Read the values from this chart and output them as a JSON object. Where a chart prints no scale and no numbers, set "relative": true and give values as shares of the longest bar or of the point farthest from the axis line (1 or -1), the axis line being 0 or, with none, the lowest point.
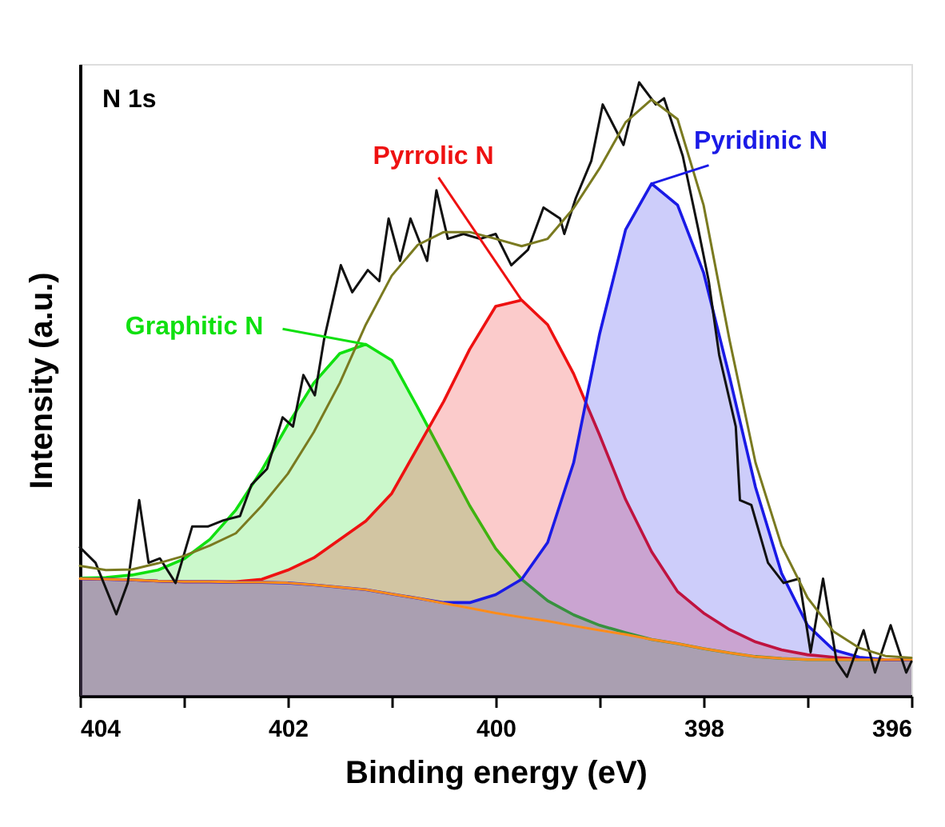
{
  "chart_data": {
    "type": "line",
    "relative": true,
    "xlabel": "Binding energy (eV)",
    "ylabel": "Intensity (a.u.)",
    "annotations": [
      "N 1s"
    ],
    "xlim": [
      404,
      396
    ],
    "xticks": [
      404,
      {
        "value": 403,
        "label": null
      },
      402,
      {
        "value": 401,
        "label": null
      },
      400,
      {
        "value": 399,
        "label": null
      },
      398,
      {
        "value": 397,
        "label": null
      },
      396
    ],
    "tick_labels": "x",
    "grid": false,
    "line_style": "solid",
    "marker": "none",
    "x": [
      404,
      403.75,
      403.5,
      403.25,
      403,
      402.75,
      402.5,
      402.25,
      402,
      401.75,
      401.5,
      401.25,
      401,
      400.75,
      400.5,
      400.25,
      400,
      399.75,
      399.5,
      399.25,
      399,
      398.75,
      398.5,
      398.25,
      398,
      397.75,
      397.5,
      397.25,
      397,
      396.75,
      396.5,
      396.25,
      396
    ],
    "series": [
      {
        "name": "Graphitic N",
        "type": "area",
        "color": "#10e010",
        "values": [
          0.192,
          0.193,
          0.197,
          0.205,
          0.223,
          0.255,
          0.303,
          0.368,
          0.442,
          0.51,
          0.558,
          0.573,
          0.547,
          0.47,
          0.39,
          0.31,
          0.24,
          0.19,
          0.155,
          0.132,
          0.115,
          0.103,
          0.092,
          0.085,
          0.077,
          0.07,
          0.064,
          0.061,
          0.059,
          0.059,
          0.059,
          0.059,
          0.059
        ]
      },
      {
        "name": "Pyrrolic N",
        "type": "area",
        "color": "#ee1111",
        "values": [
          0.191,
          0.19,
          0.189,
          0.187,
          0.186,
          0.186,
          0.186,
          0.19,
          0.205,
          0.225,
          0.255,
          0.285,
          0.33,
          0.405,
          0.48,
          0.565,
          0.635,
          0.645,
          0.605,
          0.525,
          0.425,
          0.32,
          0.235,
          0.17,
          0.135,
          0.108,
          0.088,
          0.075,
          0.067,
          0.063,
          0.06,
          0.059,
          0.059
        ]
      },
      {
        "name": "Pyridinic N",
        "type": "area",
        "color": "#1a1ae6",
        "values": [
          0.191,
          0.19,
          0.189,
          0.187,
          0.186,
          0.186,
          0.185,
          0.185,
          0.184,
          0.181,
          0.177,
          0.173,
          0.166,
          0.159,
          0.152,
          0.152,
          0.165,
          0.19,
          0.25,
          0.38,
          0.59,
          0.76,
          0.835,
          0.8,
          0.69,
          0.52,
          0.34,
          0.2,
          0.115,
          0.075,
          0.063,
          0.059,
          0.059
        ]
      },
      {
        "type": "line",
        "color": "#ff8c1a",
        "values": [
          0.191,
          0.19,
          0.189,
          0.187,
          0.186,
          0.186,
          0.185,
          0.185,
          0.184,
          0.181,
          0.177,
          0.173,
          0.166,
          0.159,
          0.151,
          0.143,
          0.135,
          0.128,
          0.122,
          0.114,
          0.107,
          0.1,
          0.092,
          0.085,
          0.077,
          0.07,
          0.064,
          0.061,
          0.059,
          0.059,
          0.059,
          0.059,
          0.059
        ]
      },
      {
        "type": "line",
        "color": "#111111",
        "x": [
          404,
          403.85,
          403.65,
          403.54,
          403.43,
          403.34,
          403.23,
          403.08,
          402.92,
          402.77,
          402.62,
          402.46,
          402.35,
          402.2,
          402.05,
          401.95,
          401.85,
          401.74,
          401.65,
          401.49,
          401.38,
          401.23,
          401.12,
          401.03,
          400.92,
          400.82,
          400.66,
          400.57,
          400.46,
          400.31,
          400.15,
          400,
          399.85,
          399.69,
          399.54,
          399.38,
          399.34,
          399.23,
          399.08,
          398.97,
          398.77,
          398.62,
          398.46,
          398.38,
          398.2,
          398.05,
          397.95,
          397.85,
          397.69,
          397.65,
          397.54,
          397.38,
          397.23,
          397.08,
          396.97,
          396.85,
          396.72,
          396.62,
          396.46,
          396.35,
          396.2,
          396.05,
          396
        ],
        "values": [
          0.242,
          0.217,
          0.133,
          0.184,
          0.319,
          0.217,
          0.224,
          0.184,
          0.276,
          0.276,
          0.286,
          0.293,
          0.344,
          0.37,
          0.454,
          0.439,
          0.523,
          0.49,
          0.582,
          0.702,
          0.658,
          0.694,
          0.676,
          0.778,
          0.709,
          0.778,
          0.709,
          0.824,
          0.745,
          0.753,
          0.745,
          0.753,
          0.702,
          0.727,
          0.796,
          0.778,
          0.753,
          0.811,
          0.872,
          0.964,
          0.898,
          1.0,
          0.964,
          0.974,
          0.88,
          0.76,
          0.676,
          0.556,
          0.439,
          0.319,
          0.311,
          0.217,
          0.184,
          0.191,
          0.071,
          0.191,
          0.056,
          0.031,
          0.107,
          0.038,
          0.115,
          0.038,
          0.056
        ]
      },
      {
        "type": "line",
        "color": "#7a7a20",
        "values": [
          0.212,
          0.205,
          0.206,
          0.216,
          0.228,
          0.245,
          0.265,
          0.31,
          0.362,
          0.43,
          0.51,
          0.605,
          0.685,
          0.735,
          0.756,
          0.756,
          0.745,
          0.733,
          0.745,
          0.795,
          0.86,
          0.935,
          0.972,
          0.94,
          0.8,
          0.58,
          0.38,
          0.245,
          0.16,
          0.105,
          0.078,
          0.065,
          0.062
        ]
      }
    ]
  }
}
